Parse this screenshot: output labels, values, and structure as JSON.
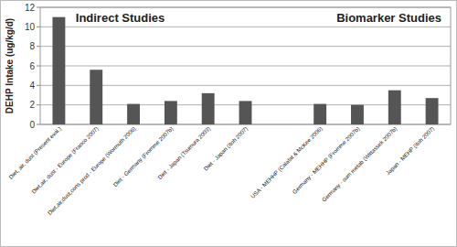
{
  "chart_data": {
    "type": "bar",
    "y_label": "DEHP Intake (ug/kg/d)",
    "annotations": [
      "Indirect Studies",
      "Biomarker Studies"
    ],
    "categories": [
      "Diet, air, dust (Present eval.)",
      "Diet,air, dust - Europe (Franco 2007)",
      "Diet,air,dust,cons prod - Europe (Wormuth 2006)",
      "Diet - Germany (Fromme 2007b)",
      "Diet - Japan (Tsumura 2003)",
      "Diet - Japan (Itoh 2007)",
      null,
      "USA - MEHHP (Calafat & McKee 2006)",
      "Germany - MEHHP (Fromme 2007b)",
      "Germany - sum metab (Wittassek 2007b)",
      "Japan - MEHP (Itoh 2007)"
    ],
    "values": [
      11,
      5.6,
      2.1,
      2.4,
      3.2,
      2.4,
      null,
      2.1,
      2.0,
      3.5,
      2.7
    ],
    "color": "#555555",
    "ylim": [
      0,
      12
    ],
    "yticks": [
      0,
      2,
      4,
      6,
      8,
      10,
      12
    ],
    "grid": true
  }
}
